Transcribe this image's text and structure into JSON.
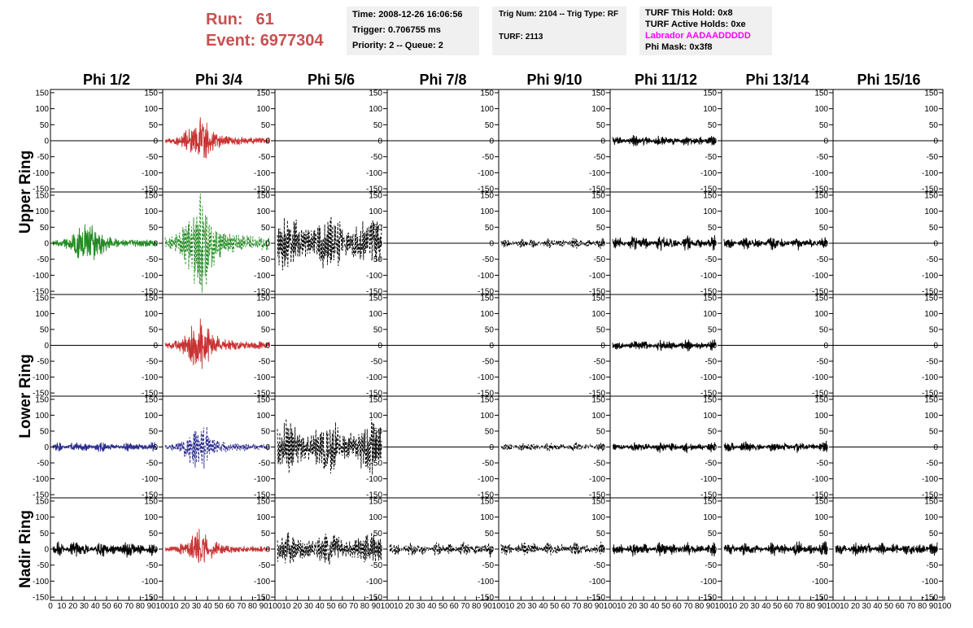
{
  "header": {
    "run_label": "Run:",
    "run_value": "61",
    "event_label": "Event:",
    "event_value": "6977304",
    "time": "Time: 2008-12-26 16:06:56",
    "trigger": "Trigger: 0.706755 ms",
    "priority": "Priority: 2 -- Queue: 2",
    "trig_num": "Trig Num: 2104 -- Trig Type: RF",
    "turf": "TURF: 2113",
    "turf_this_hold": "TURF This Hold: 0x8",
    "turf_active_holds": "TURF Active Holds: 0xe",
    "labrador": "Labrador AADAADDDDD",
    "phi_mask": "Phi Mask: 0x3f8"
  },
  "colors": {
    "header_text": "#c85050",
    "labrador_text": "#ff00ff",
    "info_box": "#f0f0f0",
    "red_trace": "#c83232",
    "green_trace": "#228b22",
    "blue_trace": "#2a2a8c",
    "black_trace": "#000000"
  },
  "chart_data": {
    "type": "line",
    "columns": [
      "Phi 1/2",
      "Phi 3/4",
      "Phi 5/6",
      "Phi 7/8",
      "Phi 9/10",
      "Phi 11/12",
      "Phi 13/14",
      "Phi 15/16"
    ],
    "ring_labels": [
      "Upper Ring",
      "Lower Ring",
      "Nadir Ring"
    ],
    "rows": 5,
    "row_rings": [
      "Upper Ring",
      "Upper Ring",
      "Lower Ring",
      "Lower Ring",
      "Nadir Ring"
    ],
    "ylim": [
      -160,
      160
    ],
    "yticks": [
      -150,
      -100,
      -50,
      0,
      50,
      100,
      150
    ],
    "ytick_labels": [
      "-150",
      "-100",
      "-50",
      "0",
      "50",
      "100",
      "150"
    ],
    "xlim": [
      0,
      100
    ],
    "xticks": [
      0,
      10,
      20,
      30,
      40,
      50,
      60,
      70,
      80,
      90,
      100
    ],
    "xtick_labels": [
      "0",
      "10",
      "20",
      "30",
      "40",
      "50",
      "60",
      "70",
      "80",
      "90",
      "100"
    ],
    "grid": false,
    "panels": [
      {
        "row": 0,
        "col": 0,
        "amplitude": 0,
        "color": "flat",
        "style": "solid",
        "envelope": "flat"
      },
      {
        "row": 0,
        "col": 1,
        "amplitude": 50,
        "color": "red",
        "style": "solid",
        "envelope": "burst"
      },
      {
        "row": 0,
        "col": 2,
        "amplitude": 0,
        "color": "flat",
        "style": "solid",
        "envelope": "flat"
      },
      {
        "row": 0,
        "col": 3,
        "amplitude": 0,
        "color": "flat",
        "style": "solid",
        "envelope": "flat"
      },
      {
        "row": 0,
        "col": 4,
        "amplitude": 0,
        "color": "flat",
        "style": "solid",
        "envelope": "flat"
      },
      {
        "row": 0,
        "col": 5,
        "amplitude": 20,
        "color": "black",
        "style": "solid",
        "envelope": "noise"
      },
      {
        "row": 0,
        "col": 6,
        "amplitude": 0,
        "color": "flat",
        "style": "solid",
        "envelope": "flat"
      },
      {
        "row": 0,
        "col": 7,
        "amplitude": 0,
        "color": "flat",
        "style": "solid",
        "envelope": "flat"
      },
      {
        "row": 1,
        "col": 0,
        "amplitude": 55,
        "color": "green",
        "style": "solid",
        "envelope": "burst"
      },
      {
        "row": 1,
        "col": 1,
        "amplitude": 110,
        "color": "green",
        "style": "dashed",
        "envelope": "burst"
      },
      {
        "row": 1,
        "col": 2,
        "amplitude": 85,
        "color": "black",
        "style": "dashed",
        "envelope": "wide"
      },
      {
        "row": 1,
        "col": 3,
        "amplitude": 0,
        "color": "flat",
        "style": "solid",
        "envelope": "flat"
      },
      {
        "row": 1,
        "col": 4,
        "amplitude": 18,
        "color": "black",
        "style": "dashed",
        "envelope": "noise"
      },
      {
        "row": 1,
        "col": 5,
        "amplitude": 25,
        "color": "black",
        "style": "solid",
        "envelope": "noise"
      },
      {
        "row": 1,
        "col": 6,
        "amplitude": 22,
        "color": "black",
        "style": "solid",
        "envelope": "noise"
      },
      {
        "row": 1,
        "col": 7,
        "amplitude": 0,
        "color": "flat",
        "style": "solid",
        "envelope": "flat"
      },
      {
        "row": 2,
        "col": 0,
        "amplitude": 0,
        "color": "flat",
        "style": "solid",
        "envelope": "flat"
      },
      {
        "row": 2,
        "col": 1,
        "amplitude": 60,
        "color": "red",
        "style": "solid",
        "envelope": "burst"
      },
      {
        "row": 2,
        "col": 2,
        "amplitude": 0,
        "color": "flat",
        "style": "solid",
        "envelope": "flat"
      },
      {
        "row": 2,
        "col": 3,
        "amplitude": 0,
        "color": "flat",
        "style": "solid",
        "envelope": "flat"
      },
      {
        "row": 2,
        "col": 4,
        "amplitude": 0,
        "color": "flat",
        "style": "solid",
        "envelope": "flat"
      },
      {
        "row": 2,
        "col": 5,
        "amplitude": 20,
        "color": "black",
        "style": "solid",
        "envelope": "noise"
      },
      {
        "row": 2,
        "col": 6,
        "amplitude": 0,
        "color": "flat",
        "style": "solid",
        "envelope": "flat"
      },
      {
        "row": 2,
        "col": 7,
        "amplitude": 0,
        "color": "flat",
        "style": "solid",
        "envelope": "flat"
      },
      {
        "row": 3,
        "col": 0,
        "amplitude": 18,
        "color": "blue",
        "style": "solid",
        "envelope": "noise"
      },
      {
        "row": 3,
        "col": 1,
        "amplitude": 55,
        "color": "blue",
        "style": "dashed",
        "envelope": "burst"
      },
      {
        "row": 3,
        "col": 2,
        "amplitude": 85,
        "color": "black",
        "style": "dashed",
        "envelope": "wide"
      },
      {
        "row": 3,
        "col": 3,
        "amplitude": 0,
        "color": "flat",
        "style": "solid",
        "envelope": "flat"
      },
      {
        "row": 3,
        "col": 4,
        "amplitude": 16,
        "color": "black",
        "style": "dashed",
        "envelope": "noise"
      },
      {
        "row": 3,
        "col": 5,
        "amplitude": 18,
        "color": "black",
        "style": "solid",
        "envelope": "noise"
      },
      {
        "row": 3,
        "col": 6,
        "amplitude": 20,
        "color": "black",
        "style": "solid",
        "envelope": "noise"
      },
      {
        "row": 3,
        "col": 7,
        "amplitude": 0,
        "color": "flat",
        "style": "solid",
        "envelope": "flat"
      },
      {
        "row": 4,
        "col": 0,
        "amplitude": 28,
        "color": "black",
        "style": "solid",
        "envelope": "noise"
      },
      {
        "row": 4,
        "col": 1,
        "amplitude": 45,
        "color": "red",
        "style": "solid",
        "envelope": "burst"
      },
      {
        "row": 4,
        "col": 2,
        "amplitude": 50,
        "color": "black",
        "style": "dashed",
        "envelope": "wide"
      },
      {
        "row": 4,
        "col": 3,
        "amplitude": 25,
        "color": "black",
        "style": "dashed",
        "envelope": "noise"
      },
      {
        "row": 4,
        "col": 4,
        "amplitude": 25,
        "color": "black",
        "style": "dashed",
        "envelope": "noise"
      },
      {
        "row": 4,
        "col": 5,
        "amplitude": 25,
        "color": "black",
        "style": "solid",
        "envelope": "noise"
      },
      {
        "row": 4,
        "col": 6,
        "amplitude": 25,
        "color": "black",
        "style": "solid",
        "envelope": "noise"
      },
      {
        "row": 4,
        "col": 7,
        "amplitude": 25,
        "color": "black",
        "style": "solid",
        "envelope": "noise"
      }
    ]
  }
}
